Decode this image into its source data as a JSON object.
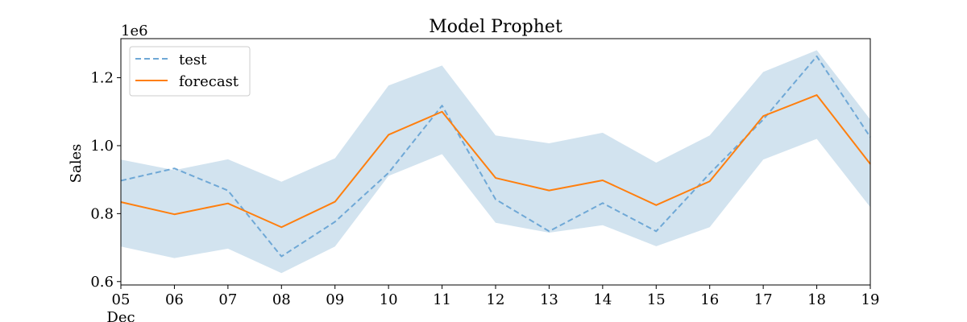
{
  "chart_data": {
    "type": "line",
    "title": "Model Prophet",
    "xlabel": "",
    "ylabel": "Sales",
    "y_offset_label": "1e6",
    "x": [
      "05",
      "06",
      "07",
      "08",
      "09",
      "10",
      "11",
      "12",
      "13",
      "14",
      "15",
      "16",
      "17",
      "18",
      "19"
    ],
    "x_sublabel": "Dec",
    "xlim": [
      0,
      14
    ],
    "ylim": [
      0.59,
      1.315
    ],
    "yticks": [
      0.6,
      0.8,
      1.0,
      1.2
    ],
    "ytick_labels": [
      "0.6",
      "0.8",
      "1.0",
      "1.2"
    ],
    "grid": false,
    "legend_position": "upper-left",
    "series": [
      {
        "name": "test",
        "style": "dashed",
        "color": "#6fa8d6",
        "values": [
          0.897,
          0.933,
          0.868,
          0.674,
          0.776,
          0.92,
          1.118,
          0.842,
          0.748,
          0.831,
          0.748,
          0.918,
          1.077,
          1.263,
          1.025
        ]
      },
      {
        "name": "forecast",
        "style": "solid",
        "color": "#ff7f0e",
        "values": [
          0.834,
          0.798,
          0.83,
          0.76,
          0.835,
          1.032,
          1.1,
          0.905,
          0.868,
          0.898,
          0.825,
          0.895,
          1.087,
          1.149,
          0.946
        ]
      }
    ],
    "interval": {
      "color": "#d2e3ef",
      "upper": [
        0.959,
        0.928,
        0.96,
        0.894,
        0.963,
        1.177,
        1.236,
        1.03,
        1.007,
        1.038,
        0.95,
        1.03,
        1.217,
        1.281,
        1.077
      ],
      "lower": [
        0.703,
        0.669,
        0.697,
        0.625,
        0.703,
        0.911,
        0.975,
        0.773,
        0.744,
        0.766,
        0.704,
        0.76,
        0.959,
        1.02,
        0.819
      ]
    }
  }
}
